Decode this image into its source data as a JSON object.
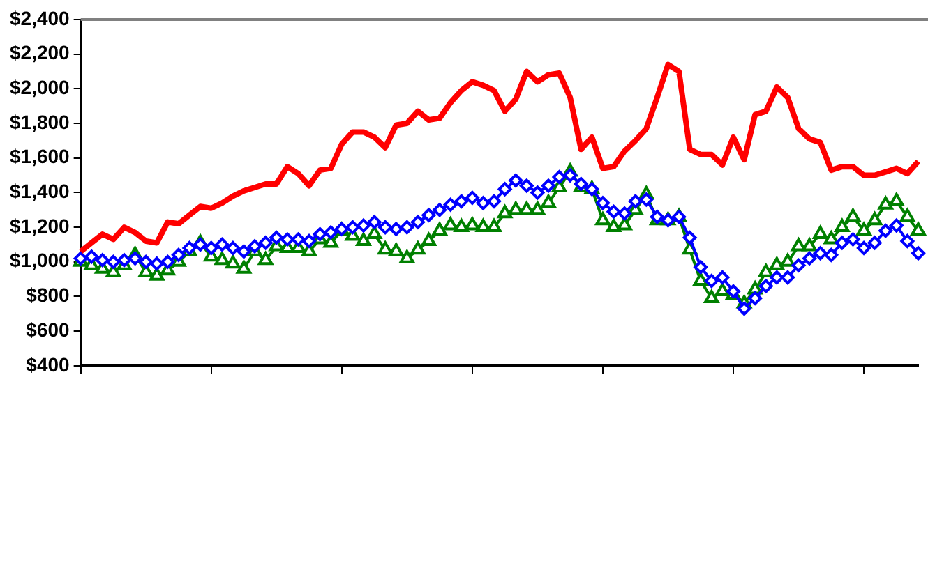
{
  "chart_data": {
    "type": "line",
    "categories": [
      null,
      null,
      null,
      null,
      null,
      null,
      null,
      null,
      null,
      null,
      null,
      null,
      null,
      null,
      null,
      null,
      null,
      null,
      null,
      null,
      null,
      null,
      null,
      null,
      null,
      null,
      null,
      null,
      null,
      null,
      null,
      null,
      null,
      null,
      null,
      null,
      null,
      null,
      null,
      null,
      null,
      null,
      null,
      null,
      null,
      null,
      null,
      null,
      null,
      null,
      null,
      null,
      null,
      null,
      null,
      null,
      null,
      null,
      null,
      null,
      null,
      null,
      null,
      null,
      null,
      null,
      null,
      null,
      null,
      null,
      null,
      null,
      null,
      null,
      null,
      null,
      null,
      null
    ],
    "ylim": [
      400,
      2400
    ],
    "yticks": [
      {
        "value": 400,
        "label": "$400"
      },
      {
        "value": 600,
        "label": "$600"
      },
      {
        "value": 800,
        "label": "$800"
      },
      {
        "value": 1000,
        "label": "$1,000"
      },
      {
        "value": 1200,
        "label": "$1,200"
      },
      {
        "value": 1400,
        "label": "$1,400"
      },
      {
        "value": 1600,
        "label": "$1,600"
      },
      {
        "value": 1800,
        "label": "$1,800"
      },
      {
        "value": 2000,
        "label": "$2,000"
      },
      {
        "value": 2200,
        "label": "$2,200"
      },
      {
        "value": 2400,
        "label": "$2,400"
      }
    ],
    "grid": false,
    "legend": false,
    "line_style": "solid",
    "series": [
      {
        "color": "#ff0000",
        "marker": "none",
        "values": [
          1060,
          1110,
          1160,
          1130,
          1200,
          1170,
          1120,
          1110,
          1230,
          1220,
          1270,
          1320,
          1310,
          1340,
          1380,
          1410,
          1430,
          1450,
          1450,
          1550,
          1510,
          1440,
          1530,
          1540,
          1680,
          1750,
          1750,
          1720,
          1660,
          1790,
          1800,
          1870,
          1820,
          1830,
          1920,
          1990,
          2040,
          2020,
          1990,
          1870,
          1940,
          2100,
          2040,
          2080,
          2090,
          1950,
          1650,
          1720,
          1540,
          1550,
          1640,
          1700,
          1770,
          1950,
          2140,
          2100,
          1650,
          1620,
          1620,
          1560,
          1720,
          1590,
          1850,
          1870,
          2010,
          1950,
          1770,
          1710,
          1690,
          1530,
          1550,
          1550,
          1500,
          1500,
          1520,
          1540,
          1510,
          1580
        ]
      },
      {
        "color": "#0000ff",
        "marker": "diamond",
        "values": [
          1020,
          1030,
          1010,
          1000,
          1010,
          1020,
          1000,
          990,
          1000,
          1040,
          1080,
          1100,
          1080,
          1100,
          1080,
          1060,
          1090,
          1110,
          1140,
          1130,
          1130,
          1120,
          1160,
          1170,
          1190,
          1200,
          1210,
          1230,
          1200,
          1190,
          1200,
          1230,
          1270,
          1300,
          1330,
          1350,
          1370,
          1340,
          1350,
          1420,
          1470,
          1440,
          1400,
          1440,
          1490,
          1500,
          1450,
          1420,
          1340,
          1290,
          1280,
          1350,
          1360,
          1260,
          1240,
          1260,
          1140,
          970,
          890,
          910,
          830,
          730,
          790,
          860,
          910,
          910,
          980,
          1020,
          1050,
          1040,
          1110,
          1130,
          1080,
          1110,
          1180,
          1210,
          1120,
          1050
        ]
      },
      {
        "color": "#008000",
        "marker": "triangle",
        "values": [
          1000,
          980,
          960,
          940,
          980,
          1040,
          940,
          920,
          950,
          1000,
          1060,
          1110,
          1030,
          1010,
          990,
          960,
          1060,
          1010,
          1090,
          1080,
          1080,
          1060,
          1130,
          1110,
          1180,
          1150,
          1120,
          1160,
          1070,
          1060,
          1020,
          1070,
          1120,
          1180,
          1210,
          1200,
          1210,
          1200,
          1200,
          1280,
          1300,
          1300,
          1300,
          1340,
          1430,
          1520,
          1430,
          1420,
          1240,
          1200,
          1210,
          1300,
          1390,
          1240,
          1240,
          1260,
          1070,
          890,
          790,
          830,
          810,
          760,
          840,
          940,
          980,
          1000,
          1090,
          1090,
          1160,
          1130,
          1200,
          1260,
          1180,
          1240,
          1330,
          1350,
          1260,
          1180
        ]
      }
    ]
  }
}
